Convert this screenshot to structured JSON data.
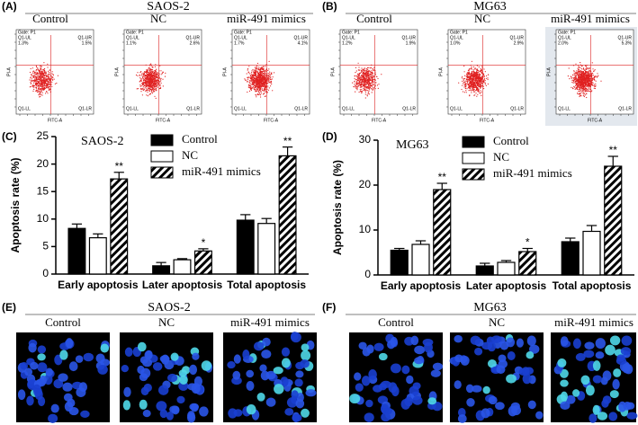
{
  "panels": [
    {
      "label": "(A)",
      "title": "SAOS-2",
      "columns": [
        "Control",
        "NC",
        "miR-491 mimics"
      ],
      "flow": {
        "gate": "Gate: P1",
        "y_label": "PI-A",
        "x_label": "FITC-A",
        "quadrants": [
          "Q1-UL",
          "Q1-UR",
          "Q1-LL",
          "Q1-LR"
        ],
        "ul": [
          "1.3%",
          "1.1%",
          "1.7%"
        ],
        "ur": [
          "1.5%",
          "2.6%",
          "4.1%"
        ]
      }
    },
    {
      "label": "(B)",
      "title": "MG63",
      "columns": [
        "Control",
        "NC",
        "miR-491 mimics"
      ],
      "flow": {
        "gate": "Gate: P1",
        "y_label": "PI-A",
        "x_label": "FITC-A",
        "quadrants": [
          "Q1-UL",
          "Q1-UR",
          "Q1-LL",
          "Q1-LR"
        ],
        "ul": [
          "1.2%",
          "1.0%",
          "2.0%"
        ],
        "ur": [
          "1.9%",
          "2.9%",
          "5.3%"
        ]
      }
    },
    {
      "label": "(E)",
      "title": "SAOS-2",
      "columns": [
        "Control",
        "NC",
        "miR-491 mimics"
      ]
    },
    {
      "label": "(F)",
      "title": "MG63",
      "columns": [
        "Control",
        "NC",
        "miR-491 mimics"
      ]
    }
  ],
  "chart_data": [
    {
      "type": "bar",
      "panel_label": "(C)",
      "title": "SAOS-2",
      "y_label": "Apoptosis rate (%)",
      "categories": [
        "Early apoptosis",
        "Later apoptosis",
        "Total apoptosis"
      ],
      "ylim": [
        0,
        25
      ],
      "yticks": [
        0,
        5,
        10,
        15,
        20,
        25
      ],
      "series": [
        {
          "name": "Control",
          "color": "#000000",
          "values": [
            8.3,
            1.5,
            9.8
          ],
          "errors": [
            0.8,
            0.6,
            1.0
          ]
        },
        {
          "name": "NC",
          "color": "#ffffff",
          "values": [
            6.6,
            2.6,
            9.2
          ],
          "errors": [
            0.7,
            0.2,
            0.9
          ]
        },
        {
          "name": "miR-491 mimics",
          "color": "#000000",
          "hatch": true,
          "values": [
            17.3,
            4.2,
            21.5
          ],
          "errors": [
            1.2,
            0.4,
            1.6
          ],
          "annotations": [
            "**",
            "*",
            "**"
          ]
        }
      ]
    },
    {
      "type": "bar",
      "panel_label": "(D)",
      "title": "MG63",
      "y_label": "Apoptosis rate (%)",
      "categories": [
        "Early apoptosis",
        "Later apoptosis",
        "Total apoptosis"
      ],
      "ylim": [
        0,
        30
      ],
      "yticks": [
        0,
        10,
        20,
        30
      ],
      "series": [
        {
          "name": "Control",
          "color": "#000000",
          "values": [
            5.5,
            2.0,
            7.4
          ],
          "errors": [
            0.4,
            0.6,
            0.8
          ]
        },
        {
          "name": "NC",
          "color": "#ffffff",
          "values": [
            6.8,
            2.8,
            9.7
          ],
          "errors": [
            0.8,
            0.4,
            1.3
          ]
        },
        {
          "name": "miR-491 mimics",
          "color": "#000000",
          "hatch": true,
          "values": [
            19.0,
            5.2,
            24.2
          ],
          "errors": [
            1.4,
            0.7,
            2.2
          ],
          "annotations": [
            "**",
            "*",
            "**"
          ]
        }
      ]
    }
  ]
}
